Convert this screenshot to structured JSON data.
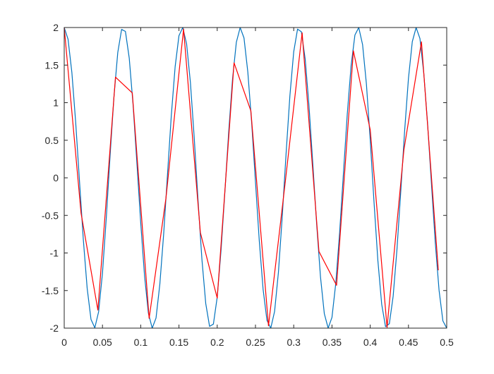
{
  "chart_data": {
    "type": "line",
    "title": "",
    "xlabel": "",
    "ylabel": "",
    "xlim": [
      0,
      0.5
    ],
    "ylim": [
      -2,
      2
    ],
    "grid": false,
    "legend": "none",
    "x_ticks": [
      {
        "value": 0,
        "label": "0"
      },
      {
        "value": 0.05,
        "label": "0.05"
      },
      {
        "value": 0.1,
        "label": "0.1"
      },
      {
        "value": 0.15,
        "label": "0.15"
      },
      {
        "value": 0.2,
        "label": "0.2"
      },
      {
        "value": 0.25,
        "label": "0.25"
      },
      {
        "value": 0.3,
        "label": "0.3"
      },
      {
        "value": 0.35,
        "label": "0.35"
      },
      {
        "value": 0.4,
        "label": "0.4"
      },
      {
        "value": 0.45,
        "label": "0.45"
      },
      {
        "value": 0.5,
        "label": "0.5"
      }
    ],
    "y_ticks": [
      {
        "value": 2,
        "label": "2"
      },
      {
        "value": 1.5,
        "label": "1.5"
      },
      {
        "value": 1,
        "label": "1"
      },
      {
        "value": 0.5,
        "label": "0.5"
      },
      {
        "value": 0,
        "label": "0"
      },
      {
        "value": -0.5,
        "label": "-0.5"
      },
      {
        "value": -1,
        "label": "-1"
      },
      {
        "value": -1.5,
        "label": "-1.5"
      },
      {
        "value": -2,
        "label": "-2"
      }
    ],
    "series": [
      {
        "color": "#0072BD",
        "x": [
          0.0,
          0.005,
          0.01,
          0.015,
          0.02,
          0.025,
          0.03,
          0.035,
          0.04,
          0.045,
          0.05,
          0.055,
          0.06,
          0.065,
          0.07,
          0.075,
          0.08,
          0.085,
          0.09,
          0.095,
          0.1,
          0.105,
          0.11,
          0.115,
          0.12,
          0.125,
          0.13,
          0.135,
          0.14,
          0.145,
          0.15,
          0.155,
          0.16,
          0.165,
          0.17,
          0.175,
          0.18,
          0.185,
          0.19,
          0.195,
          0.2,
          0.205,
          0.21,
          0.215,
          0.22,
          0.225,
          0.23,
          0.235,
          0.24,
          0.245,
          0.25,
          0.255,
          0.26,
          0.265,
          0.27,
          0.275,
          0.28,
          0.285,
          0.29,
          0.295,
          0.3,
          0.305,
          0.31,
          0.315,
          0.32,
          0.325,
          0.33,
          0.335,
          0.34,
          0.345,
          0.35,
          0.355,
          0.36,
          0.365,
          0.37,
          0.375,
          0.38,
          0.385,
          0.39,
          0.395,
          0.4,
          0.405,
          0.41,
          0.415,
          0.42,
          0.425,
          0.43,
          0.435,
          0.44,
          0.445,
          0.45,
          0.455,
          0.46,
          0.465,
          0.47,
          0.475,
          0.48,
          0.485,
          0.49,
          0.495,
          0.5
        ],
        "y": [
          2.0,
          1.8443,
          1.4019,
          0.7358,
          -0.0496,
          -0.8256,
          -1.4702,
          -1.8836,
          -1.9951,
          -1.7804,
          -1.2679,
          -0.5318,
          0.3014,
          1.0767,
          1.6671,
          1.9749,
          1.9482,
          1.5929,
          0.9718,
          0.1978,
          -0.601,
          -1.3053,
          -1.8001,
          -1.9998,
          -1.8654,
          -1.4152,
          -0.7472,
          0.0452,
          0.8317,
          1.48,
          1.892,
          1.9995,
          1.7801,
          1.2632,
          0.5239,
          -0.3103,
          -1.0843,
          -1.6722,
          -1.9768,
          -1.9466,
          -1.5867,
          -0.9637,
          -0.189,
          0.6097,
          1.3118,
          1.804,
          1.9998,
          1.8615,
          1.4082,
          0.738,
          -0.0542,
          -0.8397,
          -1.4859,
          -1.896,
          -1.9998,
          -1.7771,
          -1.2575,
          -0.516,
          0.3191,
          1.0916,
          1.6774,
          1.9786,
          1.9441,
          1.5803,
          0.9555,
          0.1799,
          -0.6184,
          -1.3181,
          -1.8077,
          -1.9996,
          -1.8576,
          -1.4012,
          -0.7292,
          0.0632,
          0.8476,
          1.4917,
          1.9,
          1.9996,
          1.774,
          1.2518,
          0.508,
          -0.3279,
          -1.099,
          -1.6824,
          -1.9803,
          -1.9415,
          -1.5738,
          -0.9474,
          -0.171,
          0.6271,
          1.3245,
          1.8114,
          1.9993,
          1.8537,
          1.3944,
          0.7203,
          -0.0722,
          -0.8554,
          -1.4974,
          -1.9038,
          -1.9993
        ]
      },
      {
        "color": "#FF0000",
        "x": [
          0.0,
          0.022,
          0.044,
          0.067,
          0.089,
          0.111,
          0.133,
          0.156,
          0.178,
          0.2,
          0.222,
          0.244,
          0.267,
          0.289,
          0.311,
          0.333,
          0.356,
          0.378,
          0.4,
          0.422,
          0.444,
          0.467,
          0.489
        ],
        "y": [
          2.0,
          -0.47,
          -1.76,
          1.34,
          1.13,
          -1.87,
          -0.27,
          1.98,
          -0.73,
          -1.6,
          1.53,
          0.89,
          -1.97,
          -0.05,
          1.93,
          -0.98,
          -1.43,
          1.69,
          0.64,
          -1.99,
          0.37,
          1.81,
          -1.23
        ]
      }
    ]
  }
}
